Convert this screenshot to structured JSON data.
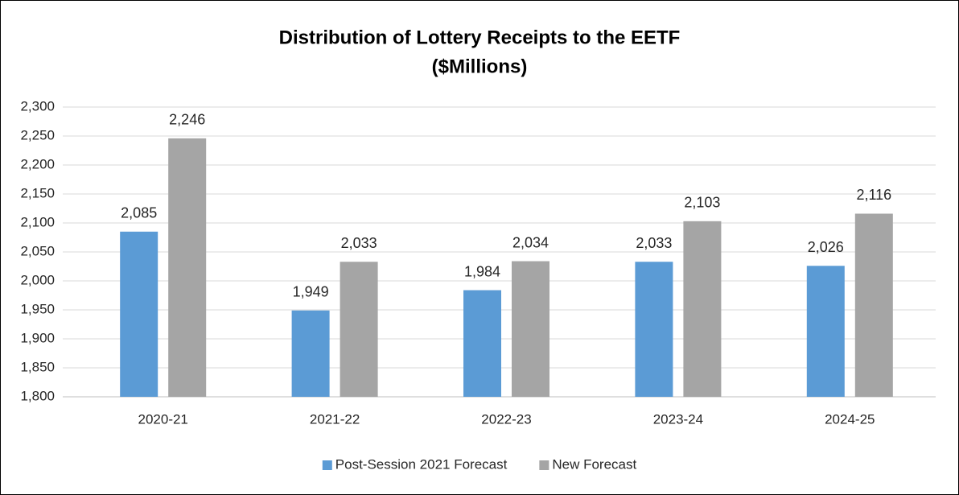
{
  "chart_data": {
    "type": "bar",
    "title": "Distribution of Lottery Receipts to the EETF",
    "subtitle": "($Millions)",
    "categories": [
      "2020-21",
      "2021-22",
      "2022-23",
      "2023-24",
      "2024-25"
    ],
    "series": [
      {
        "name": "Post-Session 2021 Forecast",
        "color": "#5b9bd5",
        "values": [
          2085,
          1949,
          1984,
          2033,
          2026
        ],
        "value_labels": [
          "2,085",
          "1,949",
          "1,984",
          "2,033",
          "2,026"
        ]
      },
      {
        "name": "New Forecast",
        "color": "#a5a5a5",
        "values": [
          2246,
          2033,
          2034,
          2103,
          2116
        ],
        "value_labels": [
          "2,246",
          "2,033",
          "2,034",
          "2,103",
          "2,116"
        ]
      }
    ],
    "ylim": [
      1800,
      2300
    ],
    "yticks": [
      {
        "value": 1800,
        "label": "1,800"
      },
      {
        "value": 1850,
        "label": "1,850"
      },
      {
        "value": 1900,
        "label": "1,900"
      },
      {
        "value": 1950,
        "label": "1,950"
      },
      {
        "value": 2000,
        "label": "2,000"
      },
      {
        "value": 2050,
        "label": "2,050"
      },
      {
        "value": 2100,
        "label": "2,100"
      },
      {
        "value": 2150,
        "label": "2,150"
      },
      {
        "value": 2200,
        "label": "2,200"
      },
      {
        "value": 2250,
        "label": "2,250"
      },
      {
        "value": 2300,
        "label": "2,300"
      }
    ],
    "grid": true,
    "legend": "bottom"
  }
}
